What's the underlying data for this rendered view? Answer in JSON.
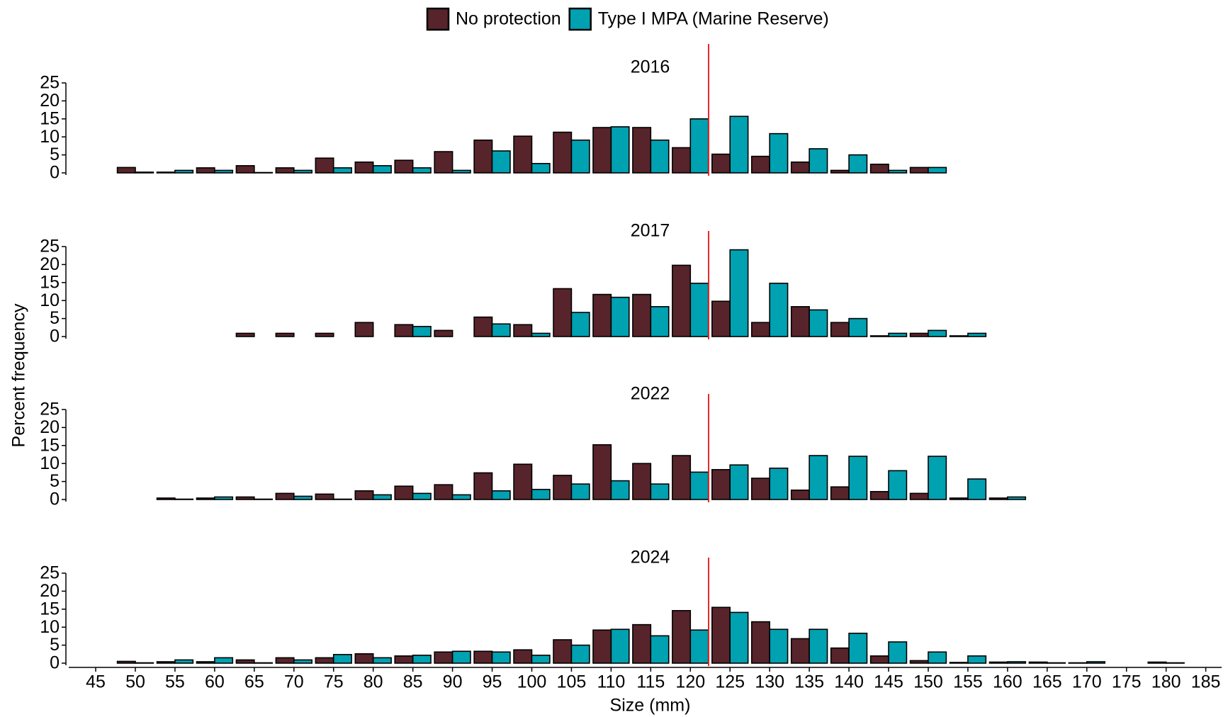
{
  "ylabel": "Percent frequency",
  "chart_data": [
    {
      "type": "bar",
      "title": "2016",
      "x": [
        50,
        55,
        60,
        65,
        70,
        75,
        80,
        85,
        90,
        95,
        100,
        105,
        110,
        115,
        120,
        125,
        130,
        135,
        140,
        145,
        150,
        155,
        160,
        165,
        170,
        180
      ],
      "series": [
        {
          "name": "No protection",
          "color": "#56242a",
          "values": [
            1.5,
            0.2,
            1.4,
            2.0,
            1.4,
            4.1,
            3.0,
            3.5,
            5.9,
            9.1,
            10.2,
            11.3,
            12.6,
            12.6,
            7.0,
            5.2,
            4.6,
            3.0,
            0.7,
            2.4,
            1.5,
            0,
            0,
            0,
            0,
            0
          ]
        },
        {
          "name": "Type I MPA (Marine Reserve)",
          "color": "#00a1b1",
          "values": [
            0.2,
            0.7,
            0.7,
            0.1,
            0.7,
            1.4,
            2.0,
            1.4,
            0.7,
            6.1,
            2.6,
            9.1,
            12.8,
            9.1,
            15.0,
            15.7,
            10.9,
            6.7,
            5.0,
            0.7,
            1.5,
            0,
            0,
            0,
            0,
            0
          ]
        }
      ],
      "xlim": [
        41.6,
        187
      ],
      "ylim": [
        0,
        25
      ],
      "yticks": [
        0,
        5,
        10,
        15,
        20,
        25
      ],
      "vline": {
        "value": 122.3,
        "color": "#e8262a"
      }
    },
    {
      "type": "bar",
      "title": "2017",
      "x": [
        50,
        55,
        60,
        65,
        70,
        75,
        80,
        85,
        90,
        95,
        100,
        105,
        110,
        115,
        120,
        125,
        130,
        135,
        140,
        145,
        150,
        155,
        160,
        165,
        170,
        180
      ],
      "series": [
        {
          "name": "No protection",
          "color": "#56242a",
          "values": [
            0,
            0,
            0,
            0.9,
            0.9,
            0.9,
            3.9,
            3.3,
            1.7,
            5.4,
            3.3,
            13.3,
            11.7,
            11.7,
            19.8,
            9.8,
            3.9,
            8.3,
            3.9,
            0.2,
            0.9,
            0.2,
            0,
            0,
            0,
            0
          ]
        },
        {
          "name": "Type I MPA (Marine Reserve)",
          "color": "#00a1b1",
          "values": [
            0,
            0,
            0,
            0,
            0,
            0,
            0,
            2.8,
            0,
            3.5,
            0.9,
            6.7,
            10.9,
            8.3,
            14.8,
            24.1,
            14.8,
            7.4,
            5.0,
            0.9,
            1.7,
            0.9,
            0,
            0,
            0,
            0
          ]
        }
      ],
      "xlim": [
        41.6,
        187
      ],
      "ylim": [
        0,
        25
      ],
      "yticks": [
        0,
        5,
        10,
        15,
        20,
        25
      ],
      "vline": {
        "value": 122.3,
        "color": "#e8262a"
      }
    },
    {
      "type": "bar",
      "title": "2022",
      "x": [
        50,
        55,
        60,
        65,
        70,
        75,
        80,
        85,
        90,
        95,
        100,
        105,
        110,
        115,
        120,
        125,
        130,
        135,
        140,
        145,
        150,
        155,
        160,
        165,
        170,
        180
      ],
      "series": [
        {
          "name": "No protection",
          "color": "#56242a",
          "values": [
            0,
            0.4,
            0.4,
            0.7,
            1.7,
            1.5,
            2.4,
            3.7,
            4.1,
            7.4,
            9.8,
            6.7,
            15.2,
            10.0,
            12.2,
            8.3,
            5.9,
            2.6,
            3.5,
            2.2,
            1.7,
            0.4,
            0.4,
            0,
            0,
            0
          ]
        },
        {
          "name": "Type I MPA (Marine Reserve)",
          "color": "#00a1b1",
          "values": [
            0,
            0.1,
            0.7,
            0.1,
            0.9,
            0.1,
            1.3,
            1.7,
            1.3,
            2.4,
            2.8,
            4.3,
            5.2,
            4.3,
            7.6,
            9.6,
            8.7,
            12.2,
            12.0,
            8.0,
            12.0,
            5.7,
            0.7,
            0,
            0,
            0
          ]
        }
      ],
      "xlim": [
        41.6,
        187
      ],
      "ylim": [
        0,
        25
      ],
      "yticks": [
        0,
        5,
        10,
        15,
        20,
        25
      ],
      "vline": {
        "value": 122.3,
        "color": "#e8262a"
      }
    },
    {
      "type": "bar",
      "title": "2024",
      "x": [
        50,
        55,
        60,
        65,
        70,
        75,
        80,
        85,
        90,
        95,
        100,
        105,
        110,
        115,
        120,
        125,
        130,
        135,
        140,
        145,
        150,
        155,
        160,
        165,
        170,
        180
      ],
      "series": [
        {
          "name": "No protection",
          "color": "#56242a",
          "values": [
            0.5,
            0.4,
            0.4,
            0.9,
            1.5,
            1.5,
            2.6,
            2.0,
            3.1,
            3.3,
            3.7,
            6.5,
            9.2,
            10.7,
            14.6,
            15.5,
            11.5,
            6.8,
            4.2,
            2.0,
            0.7,
            0.2,
            0.3,
            0.3,
            0.1,
            0.3
          ]
        },
        {
          "name": "Type I MPA (Marine Reserve)",
          "color": "#00a1b1",
          "values": [
            0.1,
            0.9,
            1.5,
            0.1,
            0.9,
            2.4,
            1.5,
            2.2,
            3.3,
            3.1,
            2.2,
            5.0,
            9.4,
            7.6,
            9.2,
            14.1,
            9.4,
            9.4,
            8.3,
            5.9,
            3.1,
            2.0,
            0.4,
            0.1,
            0.4,
            0.1
          ]
        }
      ],
      "xlim": [
        41.6,
        187
      ],
      "ylim": [
        0,
        25
      ],
      "yticks": [
        0,
        5,
        10,
        15,
        20,
        25
      ],
      "xticks": [
        45,
        50,
        55,
        60,
        65,
        70,
        75,
        80,
        85,
        90,
        95,
        100,
        105,
        110,
        115,
        120,
        125,
        130,
        135,
        140,
        145,
        150,
        155,
        160,
        165,
        170,
        175,
        180,
        185
      ],
      "xlabel": "Size (mm)",
      "vline": {
        "value": 122.3,
        "color": "#e8262a"
      }
    }
  ]
}
